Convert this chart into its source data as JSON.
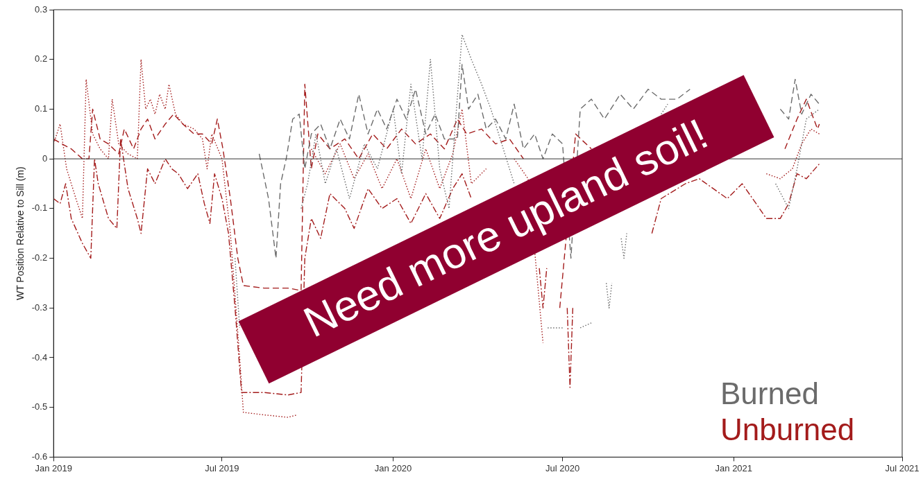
{
  "chart_data": {
    "type": "line",
    "ylabel": "WT Position Relative to Sill (m)",
    "annotations": [
      "Need more upland soil!"
    ],
    "xlim": [
      "2019-01-01",
      "2021-07-01"
    ],
    "xticks": [
      {
        "value": "2019-01-01",
        "label": "Jan 2019"
      },
      {
        "value": "2019-07-01",
        "label": "Jul 2019"
      },
      {
        "value": "2020-01-01",
        "label": "Jan 2020"
      },
      {
        "value": "2020-07-01",
        "label": "Jul 2020"
      },
      {
        "value": "2021-01-01",
        "label": "Jan 2021"
      },
      {
        "value": "2021-07-01",
        "label": "Jul 2021"
      }
    ],
    "ylim": [
      -0.6,
      0.3
    ],
    "yticks": [
      -0.6,
      -0.5,
      -0.4,
      -0.3,
      -0.2,
      -0.1,
      0,
      0.1,
      0.2,
      0.3
    ],
    "ref_lines": [
      {
        "axis": "y",
        "value": 0,
        "color": "#333333"
      }
    ],
    "grid": false,
    "legend": "bottom right",
    "marker": "none",
    "series": [
      {
        "name": "Burned",
        "color": "#6b6b6b",
        "line_style": "dashed",
        "x": [
          "2019-08-10",
          "2019-08-20",
          "2019-08-28",
          "2019-09-02",
          "2019-09-08",
          "2019-09-15",
          "2019-09-22",
          "2019-09-28",
          "2019-10-05",
          "2019-10-15",
          "2019-10-25",
          "2019-11-05",
          "2019-11-15",
          "2019-11-25",
          "2019-12-05",
          "2019-12-15",
          "2019-12-25",
          "2020-01-05",
          "2020-01-15",
          "2020-01-25",
          "2020-02-05",
          "2020-02-15",
          "2020-02-25",
          "2020-03-10",
          "2020-03-15",
          "2020-03-22",
          "2020-04-01",
          "2020-04-10",
          "2020-04-20",
          "2020-05-01",
          "2020-05-10",
          "2020-05-20",
          "2020-06-01",
          "2020-06-10",
          "2020-06-20",
          "2020-07-01",
          "2020-07-10",
          "2020-07-20",
          "2020-08-01",
          "2020-08-15",
          "2020-09-01",
          "2020-09-15",
          "2020-10-01",
          "2020-10-15",
          "2020-11-01",
          "2020-11-15",
          "2020-12-01",
          "2020-12-20",
          "2021-01-10",
          "2021-02-05",
          "2021-02-20",
          "2021-03-01",
          "2021-03-08",
          "2021-03-15",
          "2021-03-25",
          "2021-04-03"
        ],
        "values": [
          0.01,
          -0.08,
          -0.2,
          -0.05,
          0.0,
          0.08,
          0.09,
          -0.02,
          0.05,
          0.07,
          0.02,
          0.08,
          0.04,
          0.13,
          0.05,
          0.1,
          0.06,
          0.12,
          0.08,
          0.14,
          0.05,
          0.09,
          0.04,
          0.04,
          0.19,
          0.1,
          0.13,
          0.06,
          0.08,
          0.04,
          0.11,
          0.02,
          0.05,
          0.0,
          0.05,
          0.03,
          -0.2,
          0.1,
          0.12,
          0.08,
          0.13,
          0.1,
          0.14,
          0.12,
          0.12,
          0.14,
          null,
          null,
          null,
          null,
          0.1,
          0.08,
          0.16,
          0.09,
          0.13,
          0.11
        ]
      },
      {
        "color": "#6b6b6b",
        "line_style": "dotted",
        "x": [
          "2019-07-15",
          "2019-07-20",
          "2019-07-28",
          "2019-09-24",
          "2019-10-01",
          "2019-10-10",
          "2019-10-20",
          "2019-11-01",
          "2019-11-15",
          "2019-12-01",
          "2019-12-15",
          "2020-01-01",
          "2020-01-10",
          "2020-01-20",
          "2020-02-01",
          "2020-02-10",
          "2020-02-20",
          "2020-03-01",
          "2020-03-15",
          "2020-03-25",
          "2020-04-05",
          "2020-04-15",
          "2020-04-25",
          "2020-05-10",
          "2020-05-25",
          "2020-06-15",
          "2020-07-01",
          "2020-07-10",
          "2020-07-20",
          "2020-08-01",
          "2020-08-10",
          "2020-08-17",
          "2020-08-20",
          "2020-08-23",
          "2020-08-27",
          "2020-09-02",
          "2020-09-05",
          "2020-09-08",
          "2020-09-15",
          "2020-10-15",
          "2020-10-22",
          "2020-11-15",
          "2020-12-15",
          "2021-02-15",
          "2021-03-01",
          "2021-03-10",
          "2021-03-20",
          "2021-04-03"
        ],
        "values": [
          -0.2,
          -0.34,
          null,
          -0.1,
          -0.05,
          0.05,
          -0.05,
          0.02,
          -0.08,
          0.03,
          -0.02,
          0.1,
          -0.03,
          0.15,
          0.0,
          0.2,
          -0.02,
          -0.1,
          0.25,
          0.2,
          0.15,
          0.1,
          0.04,
          -0.05,
          null,
          -0.34,
          -0.34,
          null,
          -0.34,
          -0.33,
          null,
          -0.25,
          -0.3,
          -0.25,
          null,
          -0.16,
          -0.2,
          -0.15,
          null,
          0.09,
          0.11,
          null,
          null,
          -0.05,
          -0.1,
          -0.02,
          0.08,
          0.1
        ]
      },
      {
        "name": "Unburned",
        "color": "#a31b1b",
        "line_style": "dashed",
        "x": [
          "2019-01-01",
          "2019-01-10",
          "2019-01-20",
          "2019-02-01",
          "2019-02-08",
          "2019-02-12",
          "2019-02-20",
          "2019-03-01",
          "2019-03-12",
          "2019-03-18",
          "2019-03-28",
          "2019-04-05",
          "2019-04-12",
          "2019-04-20",
          "2019-05-01",
          "2019-05-10",
          "2019-05-20",
          "2019-06-01",
          "2019-06-10",
          "2019-06-20",
          "2019-06-26",
          "2019-07-02",
          "2019-07-10",
          "2019-07-18",
          "2019-07-24",
          "2019-08-15",
          "2019-09-10",
          "2019-09-24",
          "2019-09-28",
          "2019-10-05",
          "2019-10-12",
          "2019-10-25",
          "2019-11-10",
          "2019-11-25",
          "2019-12-10",
          "2019-12-25",
          "2020-01-10",
          "2020-01-25",
          "2020-02-10",
          "2020-02-25",
          "2020-03-10",
          "2020-03-20",
          "2020-04-05",
          "2020-04-20",
          "2020-05-05",
          "2020-05-20",
          "2020-06-05",
          "2020-06-28",
          "2020-07-15",
          "2020-08-01",
          "2020-08-15",
          "2020-09-01",
          "2021-02-10",
          "2021-02-25",
          "2021-03-10",
          "2021-03-20",
          "2021-04-01",
          "2021-04-03"
        ],
        "values": [
          0.04,
          0.03,
          0.02,
          0.0,
          0.0,
          0.1,
          0.04,
          0.03,
          0.01,
          0.06,
          0.02,
          0.06,
          0.08,
          0.04,
          0.07,
          0.09,
          0.07,
          0.05,
          0.05,
          0.03,
          0.08,
          0.02,
          -0.08,
          -0.2,
          -0.255,
          -0.26,
          -0.26,
          -0.265,
          0.15,
          -0.02,
          0.05,
          0.02,
          0.04,
          0.0,
          0.05,
          0.02,
          0.06,
          0.03,
          0.05,
          0.02,
          0.08,
          0.05,
          0.06,
          0.03,
          0.04,
          0.0,
          null,
          -0.3,
          0.05,
          0.02,
          null,
          null,
          null,
          0.02,
          0.08,
          0.12,
          0.06,
          0.07
        ]
      },
      {
        "color": "#a31b1b",
        "line_style": "dashdot",
        "x": [
          "2019-01-01",
          "2019-01-08",
          "2019-01-14",
          "2019-01-20",
          "2019-02-01",
          "2019-02-10",
          "2019-02-14",
          "2019-02-18",
          "2019-03-01",
          "2019-03-10",
          "2019-03-14",
          "2019-03-22",
          "2019-04-01",
          "2019-04-05",
          "2019-04-12",
          "2019-04-20",
          "2019-05-01",
          "2019-05-08",
          "2019-05-15",
          "2019-05-25",
          "2019-06-05",
          "2019-06-12",
          "2019-06-18",
          "2019-06-23",
          "2019-07-01",
          "2019-07-08",
          "2019-07-15",
          "2019-07-22",
          "2019-08-15",
          "2019-09-10",
          "2019-09-24",
          "2019-09-28",
          "2019-10-05",
          "2019-10-15",
          "2019-10-25",
          "2019-11-10",
          "2019-11-20",
          "2019-12-05",
          "2019-12-20",
          "2020-01-05",
          "2020-01-20",
          "2020-02-05",
          "2020-02-20",
          "2020-03-05",
          "2020-03-15",
          "2020-03-25",
          "2020-04-10",
          "2020-04-25",
          "2020-06-06",
          "2020-06-10",
          "2020-06-14",
          "2020-06-20",
          "2020-07-06",
          "2020-07-09",
          "2020-07-12",
          "2020-07-16",
          "2020-10-05",
          "2020-10-15",
          "2020-11-10",
          "2020-11-25",
          "2020-12-10",
          "2020-12-25",
          "2021-01-10",
          "2021-01-25",
          "2021-02-05",
          "2021-02-20",
          "2021-03-01",
          "2021-03-10",
          "2021-03-20",
          "2021-04-03"
        ],
        "values": [
          -0.08,
          -0.09,
          -0.05,
          -0.12,
          -0.17,
          -0.2,
          0.0,
          -0.05,
          -0.12,
          -0.14,
          0.04,
          -0.06,
          -0.12,
          -0.15,
          -0.02,
          -0.05,
          0.0,
          -0.02,
          -0.03,
          -0.06,
          -0.03,
          -0.09,
          -0.13,
          -0.03,
          -0.08,
          -0.15,
          -0.3,
          -0.47,
          -0.47,
          -0.475,
          -0.47,
          -0.2,
          -0.12,
          -0.16,
          -0.07,
          -0.1,
          -0.14,
          -0.06,
          -0.1,
          -0.08,
          -0.13,
          -0.07,
          -0.12,
          -0.06,
          -0.03,
          -0.08,
          null,
          null,
          -0.22,
          -0.3,
          -0.22,
          null,
          -0.3,
          -0.46,
          -0.3,
          null,
          -0.15,
          -0.08,
          -0.05,
          -0.04,
          -0.06,
          -0.08,
          -0.05,
          -0.09,
          -0.12,
          -0.12,
          -0.09,
          -0.03,
          -0.04,
          -0.01
        ]
      },
      {
        "color": "#a31b1b",
        "line_style": "dotted",
        "x": [
          "2019-01-01",
          "2019-01-08",
          "2019-01-15",
          "2019-01-25",
          "2019-02-01",
          "2019-02-05",
          "2019-02-12",
          "2019-02-20",
          "2019-03-01",
          "2019-03-05",
          "2019-03-12",
          "2019-03-22",
          "2019-04-01",
          "2019-04-05",
          "2019-04-10",
          "2019-04-15",
          "2019-04-20",
          "2019-04-25",
          "2019-05-01",
          "2019-05-05",
          "2019-05-12",
          "2019-05-20",
          "2019-06-01",
          "2019-06-10",
          "2019-06-15",
          "2019-06-20",
          "2019-07-01",
          "2019-07-10",
          "2019-07-20",
          "2019-07-24",
          "2019-08-15",
          "2019-09-10",
          "2019-09-20",
          "2019-09-24",
          "2019-10-05",
          "2019-10-20",
          "2019-11-05",
          "2019-11-20",
          "2019-12-05",
          "2019-12-20",
          "2020-01-05",
          "2020-01-20",
          "2020-02-05",
          "2020-02-20",
          "2020-03-05",
          "2020-03-15",
          "2020-03-25",
          "2020-04-10",
          "2020-04-25",
          "2020-05-10",
          "2020-05-25",
          "2020-06-10",
          "2020-06-20",
          "2021-02-05",
          "2021-02-20",
          "2021-03-05",
          "2021-03-15",
          "2021-03-25",
          "2021-04-03"
        ],
        "values": [
          0.03,
          0.07,
          -0.02,
          -0.08,
          -0.12,
          0.16,
          0.05,
          0.02,
          0.0,
          0.12,
          0.03,
          0.01,
          0.0,
          0.2,
          0.1,
          0.12,
          0.09,
          0.13,
          0.1,
          0.15,
          0.09,
          0.07,
          0.06,
          0.04,
          -0.02,
          0.05,
          0.0,
          -0.15,
          -0.4,
          -0.51,
          -0.515,
          -0.52,
          -0.515,
          null,
          0.02,
          -0.03,
          0.03,
          -0.04,
          0.01,
          -0.06,
          0.0,
          -0.08,
          0.02,
          -0.06,
          0.01,
          0.1,
          -0.05,
          -0.02,
          null,
          0.0,
          -0.04,
          -0.37,
          null,
          -0.03,
          -0.04,
          -0.02,
          0.03,
          0.06,
          0.05
        ]
      }
    ]
  }
}
